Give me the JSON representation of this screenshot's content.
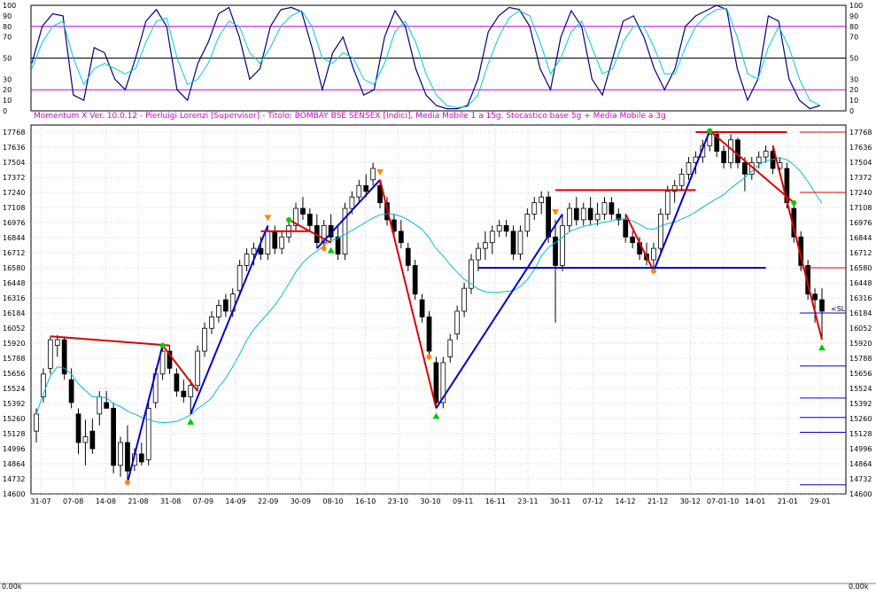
{
  "header_text": "Momentum X  Ver. 10.0.12  -  Pierluigi Lorenzi  [Supervisor] - Titolo: BOMBAY BSE SENSEX  [Indici],   Media Mobile 1 a 15g,   Stocastico base 5g + Media Mobile a 3g",
  "osc_ticks": [
    "100",
    "90",
    "80",
    "70",
    "50",
    "30",
    "20",
    "10",
    "0"
  ],
  "price_ticks": [
    "17768",
    "17636",
    "17504",
    "17372",
    "17240",
    "17108",
    "16976",
    "16844",
    "16712",
    "16580",
    "16448",
    "16316",
    "16184",
    "16052",
    "15920",
    "15788",
    "15656",
    "15524",
    "15392",
    "15260",
    "15128",
    "14996",
    "14864",
    "14732",
    "14600"
  ],
  "date_ticks": [
    "31-07",
    "07-08",
    "14-08",
    "21-08",
    "31-08",
    "07-09",
    "14-09",
    "22-09",
    "30-09",
    "08-10",
    "16-10",
    "23-10",
    "30-10",
    "09-11",
    "16-11",
    "23-11",
    "30-11",
    "07-12",
    "14-12",
    "21-12",
    "30-12",
    "07-01-10",
    "14-01",
    "21-01",
    "29-01"
  ],
  "highlight_date": "07-01-10",
  "sl_label": "<SL",
  "volume_label_left": "0.00k",
  "volume_label_right": "0.00k",
  "colors": {
    "osc_main": "#000080",
    "osc_signal": "#00cccc",
    "osc_level": "#cc00cc",
    "ma": "#00bbdd",
    "trend_down": "#dd0000",
    "trend_up": "#0000cc",
    "grid": "#aaaaaa",
    "header": "#cc00cc",
    "highlight_date": "#dd0000"
  },
  "chart_data": [
    {
      "type": "line",
      "name": "Stochastic oscillator",
      "ylim": [
        0,
        100
      ],
      "levels": [
        80,
        50,
        20
      ],
      "grid": false,
      "series": [
        {
          "values": [
            45,
            80,
            92,
            90,
            15,
            10,
            60,
            55,
            30,
            20,
            50,
            85,
            96,
            80,
            20,
            10,
            45,
            65,
            92,
            98,
            70,
            30,
            40,
            80,
            96,
            98,
            94,
            60,
            20,
            55,
            70,
            40,
            15,
            20,
            70,
            95,
            80,
            40,
            15,
            5,
            2,
            2,
            5,
            30,
            75,
            90,
            98,
            96,
            80,
            40,
            20,
            70,
            95,
            80,
            30,
            15,
            50,
            85,
            90,
            70,
            40,
            20,
            40,
            80,
            90,
            95,
            100,
            96,
            40,
            10,
            30,
            90,
            85,
            30,
            10,
            2,
            5
          ]
        },
        {
          "values": [
            40,
            65,
            80,
            85,
            50,
            25,
            40,
            45,
            40,
            35,
            40,
            65,
            85,
            88,
            50,
            25,
            30,
            45,
            70,
            85,
            80,
            55,
            45,
            60,
            80,
            90,
            95,
            80,
            50,
            45,
            55,
            50,
            30,
            25,
            45,
            75,
            85,
            65,
            35,
            15,
            5,
            3,
            4,
            15,
            45,
            70,
            88,
            95,
            90,
            65,
            35,
            50,
            75,
            85,
            60,
            35,
            40,
            65,
            80,
            80,
            60,
            35,
            35,
            60,
            80,
            90,
            96,
            97,
            70,
            35,
            30,
            60,
            80,
            60,
            30,
            10,
            5
          ]
        }
      ]
    },
    {
      "type": "candlestick",
      "name": "BOMBAY BSE SENSEX",
      "ylim": [
        14600,
        17768
      ],
      "grid": true,
      "candles": [
        {
          "o": 15150,
          "h": 15350,
          "l": 15050,
          "c": 15300
        },
        {
          "o": 15450,
          "h": 15700,
          "l": 15400,
          "c": 15650
        },
        {
          "o": 15700,
          "h": 15980,
          "l": 15650,
          "c": 15950
        },
        {
          "o": 15900,
          "h": 15990,
          "l": 15800,
          "c": 15950
        },
        {
          "o": 15950,
          "h": 15980,
          "l": 15600,
          "c": 15650
        },
        {
          "o": 15600,
          "h": 15700,
          "l": 15350,
          "c": 15400
        },
        {
          "o": 15300,
          "h": 15350,
          "l": 14950,
          "c": 15050
        },
        {
          "o": 15050,
          "h": 15250,
          "l": 14850,
          "c": 15100
        },
        {
          "o": 15150,
          "h": 15260,
          "l": 14950,
          "c": 14996
        },
        {
          "o": 15300,
          "h": 15500,
          "l": 15200,
          "c": 15450
        },
        {
          "o": 15400,
          "h": 15500,
          "l": 15350,
          "c": 15350
        },
        {
          "o": 15350,
          "h": 15400,
          "l": 14780,
          "c": 14850
        },
        {
          "o": 14850,
          "h": 15100,
          "l": 14750,
          "c": 15050
        },
        {
          "o": 15050,
          "h": 15200,
          "l": 14700,
          "c": 14800
        },
        {
          "o": 14850,
          "h": 15000,
          "l": 14800,
          "c": 14950
        },
        {
          "o": 14950,
          "h": 15050,
          "l": 14850,
          "c": 14880
        },
        {
          "o": 14900,
          "h": 15400,
          "l": 14850,
          "c": 15350
        },
        {
          "o": 15400,
          "h": 15700,
          "l": 15350,
          "c": 15650
        },
        {
          "o": 15650,
          "h": 15900,
          "l": 15600,
          "c": 15850
        },
        {
          "o": 15850,
          "h": 15900,
          "l": 15650,
          "c": 15700
        },
        {
          "o": 15650,
          "h": 15700,
          "l": 15450,
          "c": 15500
        },
        {
          "o": 15500,
          "h": 15600,
          "l": 15400,
          "c": 15450
        },
        {
          "o": 15450,
          "h": 15600,
          "l": 15300,
          "c": 15550
        },
        {
          "o": 15550,
          "h": 15900,
          "l": 15500,
          "c": 15850
        },
        {
          "o": 15850,
          "h": 16100,
          "l": 15800,
          "c": 16050
        },
        {
          "o": 16050,
          "h": 16200,
          "l": 16000,
          "c": 16150
        },
        {
          "o": 16150,
          "h": 16300,
          "l": 16100,
          "c": 16250
        },
        {
          "o": 16300,
          "h": 16350,
          "l": 16150,
          "c": 16200
        },
        {
          "o": 16200,
          "h": 16400,
          "l": 16150,
          "c": 16350
        },
        {
          "o": 16380,
          "h": 16650,
          "l": 16350,
          "c": 16600
        },
        {
          "o": 16600,
          "h": 16750,
          "l": 16550,
          "c": 16700
        },
        {
          "o": 16700,
          "h": 16800,
          "l": 16600,
          "c": 16750
        },
        {
          "o": 16750,
          "h": 16850,
          "l": 16650,
          "c": 16700
        },
        {
          "o": 16700,
          "h": 16950,
          "l": 16650,
          "c": 16900
        },
        {
          "o": 16900,
          "h": 16950,
          "l": 16700,
          "c": 16750
        },
        {
          "o": 16750,
          "h": 16900,
          "l": 16700,
          "c": 16850
        },
        {
          "o": 16850,
          "h": 17000,
          "l": 16800,
          "c": 16950
        },
        {
          "o": 16950,
          "h": 17150,
          "l": 16900,
          "c": 17100
        },
        {
          "o": 17100,
          "h": 17200,
          "l": 17000,
          "c": 17050
        },
        {
          "o": 17050,
          "h": 17100,
          "l": 16900,
          "c": 16950
        },
        {
          "o": 16950,
          "h": 17050,
          "l": 16750,
          "c": 16800
        },
        {
          "o": 16800,
          "h": 17000,
          "l": 16750,
          "c": 16950
        },
        {
          "o": 16950,
          "h": 17050,
          "l": 16800,
          "c": 16850
        },
        {
          "o": 16850,
          "h": 16950,
          "l": 16650,
          "c": 16700
        },
        {
          "o": 16700,
          "h": 17150,
          "l": 16650,
          "c": 17100
        },
        {
          "o": 17100,
          "h": 17250,
          "l": 17050,
          "c": 17200
        },
        {
          "o": 17200,
          "h": 17350,
          "l": 17150,
          "c": 17300
        },
        {
          "o": 17300,
          "h": 17400,
          "l": 17200,
          "c": 17250
        },
        {
          "o": 17350,
          "h": 17500,
          "l": 17300,
          "c": 17450
        },
        {
          "o": 17300,
          "h": 17350,
          "l": 17100,
          "c": 17150
        },
        {
          "o": 17150,
          "h": 17200,
          "l": 16950,
          "c": 17000
        },
        {
          "o": 17000,
          "h": 17050,
          "l": 16850,
          "c": 16900
        },
        {
          "o": 16900,
          "h": 17000,
          "l": 16750,
          "c": 16800
        },
        {
          "o": 16750,
          "h": 16800,
          "l": 16550,
          "c": 16600
        },
        {
          "o": 16600,
          "h": 16650,
          "l": 16300,
          "c": 16350
        },
        {
          "o": 16300,
          "h": 16350,
          "l": 16100,
          "c": 16150
        },
        {
          "o": 16150,
          "h": 16200,
          "l": 15800,
          "c": 15850
        },
        {
          "o": 15750,
          "h": 15800,
          "l": 15350,
          "c": 15400
        },
        {
          "o": 15400,
          "h": 15800,
          "l": 15350,
          "c": 15750
        },
        {
          "o": 15800,
          "h": 16000,
          "l": 15750,
          "c": 15950
        },
        {
          "o": 16000,
          "h": 16250,
          "l": 15950,
          "c": 16200
        },
        {
          "o": 16200,
          "h": 16450,
          "l": 16150,
          "c": 16400
        },
        {
          "o": 16400,
          "h": 16700,
          "l": 16350,
          "c": 16650
        },
        {
          "o": 16650,
          "h": 16800,
          "l": 16550,
          "c": 16750
        },
        {
          "o": 16750,
          "h": 16900,
          "l": 16650,
          "c": 16800
        },
        {
          "o": 16800,
          "h": 16950,
          "l": 16700,
          "c": 16900
        },
        {
          "o": 16900,
          "h": 17000,
          "l": 16850,
          "c": 16950
        },
        {
          "o": 16950,
          "h": 17000,
          "l": 16850,
          "c": 16900
        },
        {
          "o": 16900,
          "h": 16950,
          "l": 16650,
          "c": 16700
        },
        {
          "o": 16700,
          "h": 16950,
          "l": 16650,
          "c": 16900
        },
        {
          "o": 16900,
          "h": 17100,
          "l": 16850,
          "c": 17050
        },
        {
          "o": 17050,
          "h": 17200,
          "l": 17000,
          "c": 17150
        },
        {
          "o": 17150,
          "h": 17250,
          "l": 17050,
          "c": 17200
        },
        {
          "o": 17200,
          "h": 17250,
          "l": 16800,
          "c": 16850
        },
        {
          "o": 16850,
          "h": 17000,
          "l": 16100,
          "c": 16600
        },
        {
          "o": 16600,
          "h": 17050,
          "l": 16550,
          "c": 16950
        },
        {
          "o": 16950,
          "h": 17150,
          "l": 16900,
          "c": 17100
        },
        {
          "o": 17100,
          "h": 17200,
          "l": 16950,
          "c": 17000
        },
        {
          "o": 17000,
          "h": 17150,
          "l": 16950,
          "c": 17100
        },
        {
          "o": 17100,
          "h": 17200,
          "l": 16950,
          "c": 17000
        },
        {
          "o": 17000,
          "h": 17150,
          "l": 16950,
          "c": 17050
        },
        {
          "o": 17050,
          "h": 17200,
          "l": 17000,
          "c": 17150
        },
        {
          "o": 17150,
          "h": 17200,
          "l": 17000,
          "c": 17050
        },
        {
          "o": 17050,
          "h": 17100,
          "l": 16950,
          "c": 17000
        },
        {
          "o": 17000,
          "h": 17050,
          "l": 16800,
          "c": 16850
        },
        {
          "o": 16850,
          "h": 16900,
          "l": 16750,
          "c": 16800
        },
        {
          "o": 16800,
          "h": 16850,
          "l": 16650,
          "c": 16700
        },
        {
          "o": 16700,
          "h": 16800,
          "l": 16600,
          "c": 16650
        },
        {
          "o": 16650,
          "h": 16800,
          "l": 16550,
          "c": 16750
        },
        {
          "o": 16750,
          "h": 17100,
          "l": 16700,
          "c": 17050
        },
        {
          "o": 17050,
          "h": 17300,
          "l": 17000,
          "c": 17250
        },
        {
          "o": 17250,
          "h": 17350,
          "l": 17150,
          "c": 17300
        },
        {
          "o": 17300,
          "h": 17450,
          "l": 17250,
          "c": 17400
        },
        {
          "o": 17400,
          "h": 17550,
          "l": 17350,
          "c": 17500
        },
        {
          "o": 17500,
          "h": 17600,
          "l": 17400,
          "c": 17550
        },
        {
          "o": 17550,
          "h": 17700,
          "l": 17500,
          "c": 17650
        },
        {
          "o": 17650,
          "h": 17780,
          "l": 17600,
          "c": 17750
        },
        {
          "o": 17750,
          "h": 17780,
          "l": 17550,
          "c": 17600
        },
        {
          "o": 17600,
          "h": 17650,
          "l": 17450,
          "c": 17500
        },
        {
          "o": 17500,
          "h": 17750,
          "l": 17450,
          "c": 17700
        },
        {
          "o": 17700,
          "h": 17720,
          "l": 17450,
          "c": 17500
        },
        {
          "o": 17500,
          "h": 17550,
          "l": 17250,
          "c": 17400
        },
        {
          "o": 17400,
          "h": 17550,
          "l": 17350,
          "c": 17500
        },
        {
          "o": 17500,
          "h": 17600,
          "l": 17450,
          "c": 17550
        },
        {
          "o": 17550,
          "h": 17650,
          "l": 17500,
          "c": 17600
        },
        {
          "o": 17600,
          "h": 17650,
          "l": 17400,
          "c": 17450
        },
        {
          "o": 17450,
          "h": 17550,
          "l": 17400,
          "c": 17500
        },
        {
          "o": 17450,
          "h": 17500,
          "l": 17100,
          "c": 17150
        },
        {
          "o": 17100,
          "h": 17150,
          "l": 16800,
          "c": 16850
        },
        {
          "o": 16850,
          "h": 16900,
          "l": 16550,
          "c": 16600
        },
        {
          "o": 16600,
          "h": 16650,
          "l": 16300,
          "c": 16350
        },
        {
          "o": 16350,
          "h": 16400,
          "l": 16100,
          "c": 16300
        },
        {
          "o": 16300,
          "h": 16400,
          "l": 15950,
          "c": 16200
        }
      ]
    }
  ]
}
